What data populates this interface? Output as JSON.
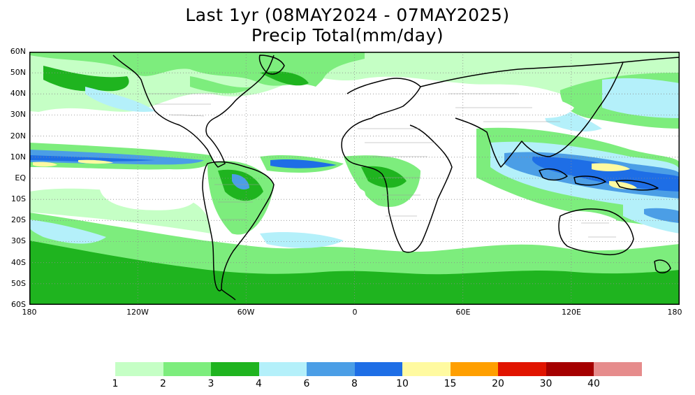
{
  "title": {
    "line1": "Last 1yr (08MAY2024 - 07MAY2025)",
    "line2": "Precip Total(mm/day)"
  },
  "map": {
    "lat_labels": [
      "60N",
      "50N",
      "40N",
      "30N",
      "20N",
      "10N",
      "EQ",
      "10S",
      "20S",
      "30S",
      "40S",
      "50S",
      "60S"
    ],
    "lon_labels": [
      "180",
      "120W",
      "60W",
      "0",
      "60E",
      "120E",
      "180"
    ],
    "lat_range": [
      -60,
      60
    ],
    "lon_range": [
      -180,
      180
    ],
    "grid_lines": "dotted"
  },
  "legend": {
    "colors": [
      "#c5ffc5",
      "#7ded7d",
      "#1fb41f",
      "#b4f0fa",
      "#4b9ee6",
      "#1e6ee6",
      "#fffaa0",
      "#ff9f00",
      "#e11400",
      "#a50000",
      "#e68c8c"
    ],
    "labels": [
      "1",
      "2",
      "3",
      "4",
      "6",
      "8",
      "10",
      "15",
      "20",
      "30",
      "40"
    ]
  }
}
